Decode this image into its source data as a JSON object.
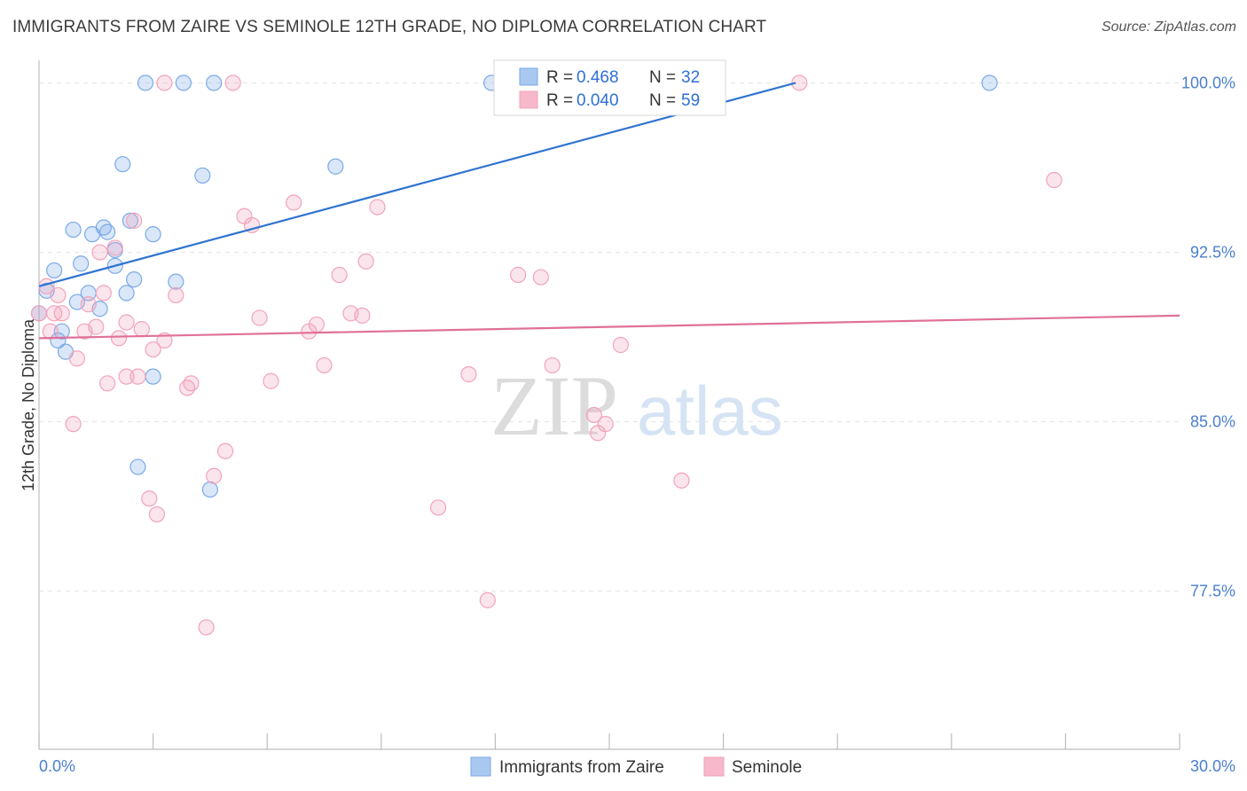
{
  "header": {
    "title": "IMMIGRANTS FROM ZAIRE VS SEMINOLE 12TH GRADE, NO DIPLOMA CORRELATION CHART",
    "source": "Source: ZipAtlas.com"
  },
  "watermark": {
    "zip": "ZIP",
    "atlas": "atlas"
  },
  "legend": {
    "rows": [
      {
        "r_label": "R = ",
        "r_value": "0.468",
        "n_label": "N = ",
        "n_value": "32",
        "color": "#a9c8f0"
      },
      {
        "r_label": "R = ",
        "r_value": "0.040",
        "n_label": "N = ",
        "n_value": "59",
        "color": "#f6b8ca"
      }
    ]
  },
  "chart_data": {
    "type": "scatter",
    "title": "IMMIGRANTS FROM ZAIRE VS SEMINOLE 12TH GRADE, NO DIPLOMA CORRELATION CHART",
    "xlabel": "",
    "ylabel": "12th Grade, No Diploma",
    "xlim": [
      0,
      30
    ],
    "ylim": [
      70.5,
      101.0
    ],
    "x_tick_labels": [
      "0.0%",
      "30.0%"
    ],
    "y_tick_labels": [
      "100.0%",
      "92.5%",
      "85.0%",
      "77.5%"
    ],
    "y_ticks": [
      100.0,
      92.5,
      85.0,
      77.5
    ],
    "grid": true,
    "legend_position": "top-center",
    "series": [
      {
        "name": "Immigrants from Zaire",
        "color": "#7aaae8",
        "trend": {
          "x": [
            0.0,
            19.9
          ],
          "y": [
            91.0,
            100.0
          ],
          "color": "#2f74d0"
        },
        "points": [
          [
            2.8,
            100.0
          ],
          [
            3.8,
            100.0
          ],
          [
            4.6,
            100.0
          ],
          [
            11.9,
            100.0
          ],
          [
            25.0,
            100.0
          ],
          [
            2.2,
            96.4
          ],
          [
            4.3,
            95.9
          ],
          [
            7.8,
            96.3
          ],
          [
            0.9,
            93.5
          ],
          [
            1.4,
            93.3
          ],
          [
            1.7,
            93.6
          ],
          [
            1.8,
            93.4
          ],
          [
            2.4,
            93.9
          ],
          [
            3.0,
            93.3
          ],
          [
            1.1,
            92.0
          ],
          [
            2.0,
            92.6
          ],
          [
            2.0,
            91.9
          ],
          [
            0.4,
            91.7
          ],
          [
            0.2,
            90.8
          ],
          [
            2.5,
            91.3
          ],
          [
            3.6,
            91.2
          ],
          [
            2.3,
            90.7
          ],
          [
            1.0,
            90.3
          ],
          [
            1.3,
            90.7
          ],
          [
            1.6,
            90.0
          ],
          [
            0.0,
            89.8
          ],
          [
            0.6,
            89.0
          ],
          [
            0.5,
            88.6
          ],
          [
            0.7,
            88.1
          ],
          [
            3.0,
            87.0
          ],
          [
            2.6,
            83.0
          ],
          [
            4.5,
            82.0
          ]
        ]
      },
      {
        "name": "Seminole",
        "color": "#f2a3bb",
        "trend": {
          "x": [
            0.0,
            30.0
          ],
          "y": [
            88.7,
            89.7
          ],
          "color": "#e07099"
        },
        "points": [
          [
            3.3,
            100.0
          ],
          [
            5.1,
            100.0
          ],
          [
            20.0,
            100.0
          ],
          [
            26.7,
            95.7
          ],
          [
            6.7,
            94.7
          ],
          [
            8.9,
            94.5
          ],
          [
            5.4,
            94.1
          ],
          [
            5.6,
            93.7
          ],
          [
            2.5,
            93.9
          ],
          [
            8.6,
            92.1
          ],
          [
            7.9,
            91.5
          ],
          [
            12.6,
            91.5
          ],
          [
            13.2,
            91.4
          ],
          [
            2.0,
            92.7
          ],
          [
            1.6,
            92.5
          ],
          [
            0.2,
            91.0
          ],
          [
            0.5,
            90.6
          ],
          [
            3.6,
            90.6
          ],
          [
            1.7,
            90.7
          ],
          [
            0.4,
            89.8
          ],
          [
            0.6,
            89.8
          ],
          [
            1.3,
            90.2
          ],
          [
            5.8,
            89.6
          ],
          [
            8.2,
            89.8
          ],
          [
            8.5,
            89.7
          ],
          [
            7.3,
            89.3
          ],
          [
            7.1,
            89.0
          ],
          [
            2.3,
            89.4
          ],
          [
            2.7,
            89.1
          ],
          [
            1.5,
            89.2
          ],
          [
            1.2,
            89.0
          ],
          [
            0.3,
            89.0
          ],
          [
            2.1,
            88.7
          ],
          [
            3.3,
            88.6
          ],
          [
            3.0,
            88.2
          ],
          [
            15.3,
            88.4
          ],
          [
            1.0,
            87.8
          ],
          [
            7.5,
            87.5
          ],
          [
            13.5,
            87.5
          ],
          [
            11.3,
            87.1
          ],
          [
            2.3,
            87.0
          ],
          [
            2.6,
            87.0
          ],
          [
            1.8,
            86.7
          ],
          [
            4.0,
            86.7
          ],
          [
            6.1,
            86.8
          ],
          [
            3.9,
            86.5
          ],
          [
            14.6,
            85.3
          ],
          [
            14.9,
            84.9
          ],
          [
            14.7,
            84.5
          ],
          [
            0.9,
            84.9
          ],
          [
            4.9,
            83.7
          ],
          [
            4.6,
            82.6
          ],
          [
            16.9,
            82.4
          ],
          [
            2.9,
            81.6
          ],
          [
            3.1,
            80.9
          ],
          [
            10.5,
            81.2
          ],
          [
            11.8,
            77.1
          ],
          [
            4.4,
            75.9
          ],
          [
            0.0,
            89.8
          ]
        ]
      }
    ]
  },
  "bottom_legend": [
    {
      "label": "Immigrants from Zaire",
      "color": "#a9c8f0"
    },
    {
      "label": "Seminole",
      "color": "#f6b8ca"
    }
  ]
}
